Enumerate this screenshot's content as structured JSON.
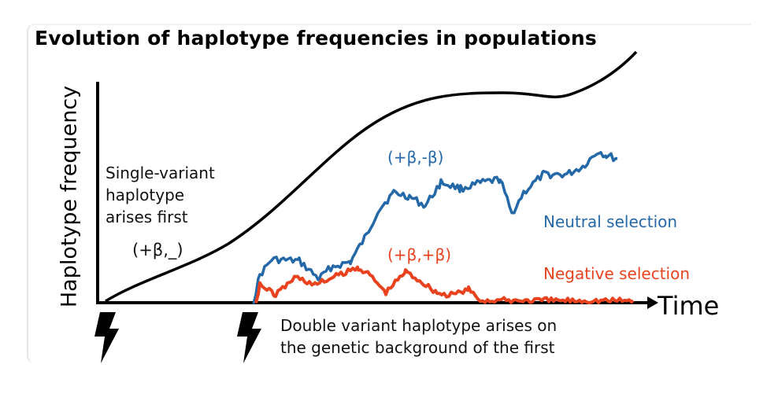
{
  "title": "Evolution of haplotype frequencies in populations",
  "axes": {
    "ylabel": "Haplotype frequency",
    "xlabel": "Time"
  },
  "annotations": {
    "single_variant": [
      "Single-variant",
      "haplotype",
      "arises first"
    ],
    "single_label": "(+β,_)",
    "double_variant": [
      "Double variant haplotype arises on",
      "the genetic background of the first"
    ],
    "neutral_label": "(+β,-β)",
    "negative_label": "(+β,+β)",
    "neutral_selection": "Neutral selection",
    "negative_selection": "Negative selection"
  },
  "colors": {
    "neutral": "#2568a7",
    "negative": "#e8431e",
    "single": "#000000"
  },
  "icons": [
    "lightning-bolt-icon",
    "lightning-bolt-icon"
  ]
}
